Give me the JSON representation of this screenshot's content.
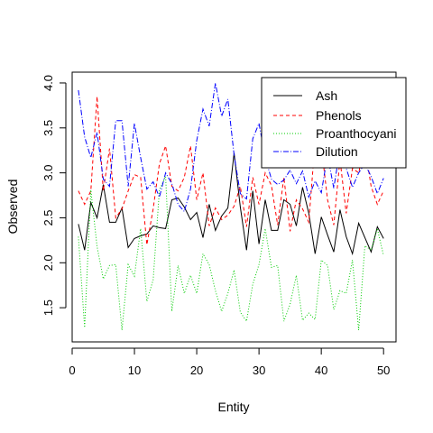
{
  "chart_data": {
    "type": "line",
    "title": "",
    "xlabel": "Entity",
    "ylabel": "Observed",
    "xlim": [
      0,
      52
    ],
    "ylim": [
      1.12,
      4.12
    ],
    "xticks": [
      0,
      10,
      20,
      30,
      40,
      50
    ],
    "xtick_labels": [
      "0",
      "10",
      "20",
      "30",
      "40",
      "50"
    ],
    "yticks": [
      1.5,
      2.0,
      2.5,
      3.0,
      3.5,
      4.0
    ],
    "ytick_labels": [
      "1.5",
      "2.0",
      "2.5",
      "3.0",
      "3.5",
      "4.0"
    ],
    "grid": false,
    "legend_position": "top-right",
    "x": [
      1,
      2,
      3,
      4,
      5,
      6,
      7,
      8,
      9,
      10,
      11,
      12,
      13,
      14,
      15,
      16,
      17,
      18,
      19,
      20,
      21,
      22,
      23,
      24,
      25,
      26,
      27,
      28,
      29,
      30,
      31,
      32,
      33,
      34,
      35,
      36,
      37,
      38,
      39,
      40,
      41,
      42,
      43,
      44,
      45,
      46,
      47,
      48,
      49,
      50
    ],
    "series": [
      {
        "name": "Ash",
        "color": "#000000",
        "dash": "",
        "values": [
          2.43,
          2.14,
          2.67,
          2.5,
          2.87,
          2.45,
          2.45,
          2.61,
          2.17,
          2.27,
          2.3,
          2.32,
          2.41,
          2.39,
          2.38,
          2.7,
          2.72,
          2.62,
          2.48,
          2.56,
          2.28,
          2.65,
          2.36,
          2.52,
          2.61,
          3.22,
          2.62,
          2.14,
          2.8,
          2.21,
          2.7,
          2.36,
          2.36,
          2.7,
          2.65,
          2.41,
          2.84,
          2.55,
          2.1,
          2.51,
          2.31,
          2.12,
          2.59,
          2.29,
          2.1,
          2.44,
          2.28,
          2.12,
          2.4,
          2.27
        ]
      },
      {
        "name": "Phenols",
        "color": "#ff0000",
        "dash": "4,3",
        "values": [
          2.8,
          2.65,
          2.8,
          3.85,
          2.8,
          3.27,
          2.5,
          2.6,
          2.8,
          2.98,
          2.95,
          2.2,
          2.6,
          3.1,
          3.3,
          2.85,
          2.8,
          2.95,
          3.3,
          2.7,
          3.0,
          2.41,
          2.61,
          2.48,
          2.53,
          2.63,
          2.85,
          2.4,
          2.95,
          2.65,
          3.0,
          2.86,
          2.42,
          2.95,
          2.35,
          2.7,
          2.6,
          2.45,
          3.35,
          3.3,
          2.7,
          2.42,
          3.15,
          2.55,
          3.05,
          3.0,
          3.3,
          2.85,
          2.65,
          2.8
        ]
      },
      {
        "name": "Proanthocyanins",
        "color": "#00cc00",
        "dash": "1,2",
        "values": [
          2.29,
          1.28,
          2.81,
          2.18,
          1.82,
          1.97,
          1.98,
          1.25,
          1.98,
          1.85,
          2.38,
          1.57,
          1.81,
          2.81,
          2.96,
          1.46,
          1.97,
          1.66,
          1.86,
          1.66,
          2.1,
          1.98,
          1.69,
          1.46,
          1.66,
          1.92,
          1.45,
          1.35,
          1.76,
          1.98,
          2.38,
          1.95,
          1.97,
          1.35,
          1.54,
          1.86,
          1.36,
          1.44,
          1.37,
          2.03,
          1.97,
          1.48,
          1.69,
          1.66,
          2.03,
          1.25,
          2.19,
          2.14,
          2.38,
          2.08
        ]
      },
      {
        "name": "Dilution",
        "color": "#0000ff",
        "dash": "6,2,1,2",
        "values": [
          3.92,
          3.4,
          3.17,
          3.45,
          2.93,
          2.85,
          3.58,
          3.58,
          2.85,
          3.55,
          3.17,
          2.82,
          2.9,
          2.73,
          3.0,
          2.88,
          2.65,
          2.57,
          2.82,
          3.36,
          3.71,
          3.52,
          4.0,
          3.63,
          3.82,
          3.2,
          2.77,
          2.71,
          3.38,
          3.55,
          3.17,
          2.93,
          2.87,
          2.92,
          3.03,
          2.88,
          3.02,
          2.73,
          2.91,
          2.78,
          3.2,
          2.83,
          3.27,
          3.05,
          2.84,
          3.0,
          3.1,
          2.96,
          2.77,
          2.94
        ]
      }
    ]
  },
  "legend": {
    "entries": [
      "Ash",
      "Phenols",
      "Proanthocyanins",
      "Dilution"
    ]
  }
}
